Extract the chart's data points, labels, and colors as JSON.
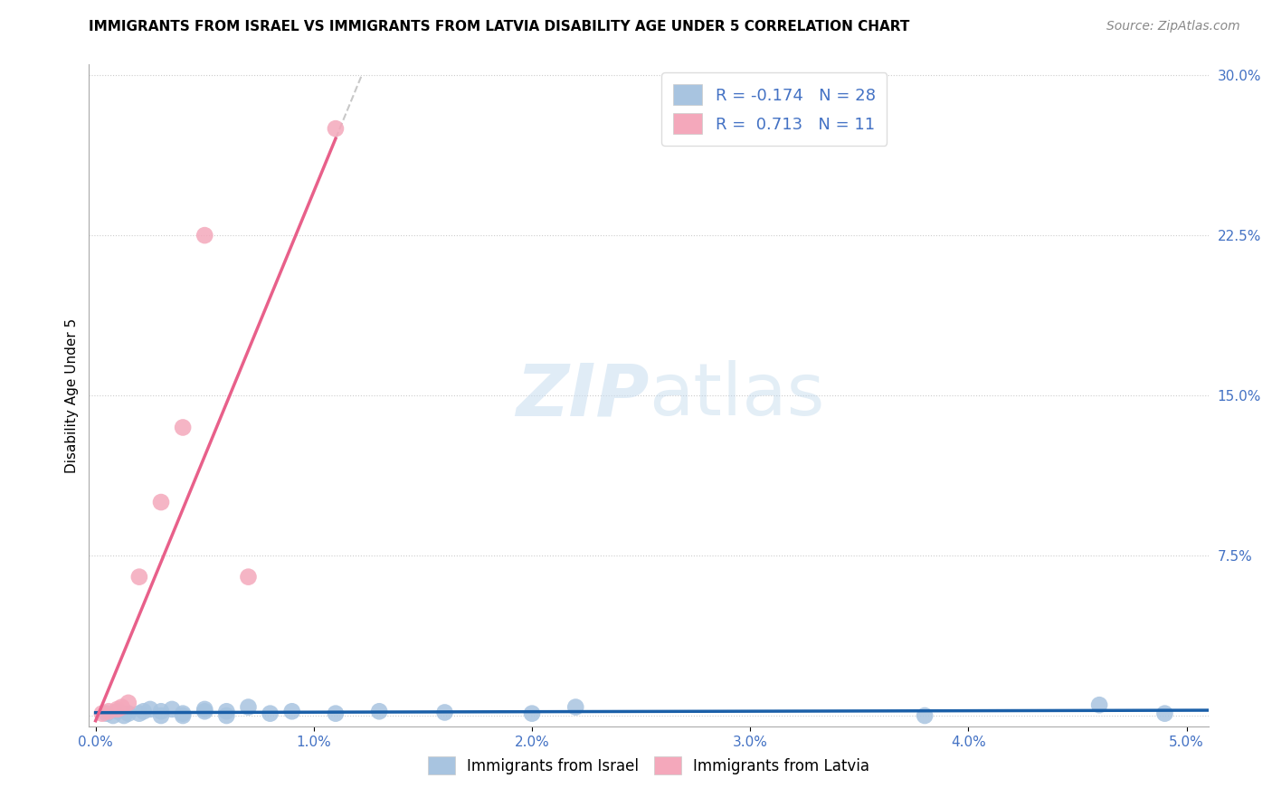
{
  "title": "IMMIGRANTS FROM ISRAEL VS IMMIGRANTS FROM LATVIA DISABILITY AGE UNDER 5 CORRELATION CHART",
  "source": "Source: ZipAtlas.com",
  "ylabel": "Disability Age Under 5",
  "xlim": [
    -0.0003,
    0.051
  ],
  "ylim": [
    -0.005,
    0.305
  ],
  "xticks": [
    0.0,
    0.01,
    0.02,
    0.03,
    0.04,
    0.05
  ],
  "yticks": [
    0.0,
    0.075,
    0.15,
    0.225,
    0.3
  ],
  "xtick_labels": [
    "0.0%",
    "1.0%",
    "2.0%",
    "3.0%",
    "4.0%",
    "5.0%"
  ],
  "ytick_labels": [
    "",
    "7.5%",
    "15.0%",
    "22.5%",
    "30.0%"
  ],
  "israel_color": "#a8c4e0",
  "latvia_color": "#f4a8bb",
  "israel_trend_color": "#1a5fa8",
  "latvia_trend_color": "#e8608a",
  "r_israel": -0.174,
  "n_israel": 28,
  "r_latvia": 0.713,
  "n_latvia": 11,
  "israel_x": [
    0.0005,
    0.0008,
    0.001,
    0.0013,
    0.0015,
    0.002,
    0.0022,
    0.0025,
    0.003,
    0.003,
    0.0035,
    0.004,
    0.004,
    0.005,
    0.005,
    0.006,
    0.006,
    0.007,
    0.008,
    0.009,
    0.011,
    0.013,
    0.016,
    0.02,
    0.022,
    0.038,
    0.046,
    0.049
  ],
  "israel_y": [
    0.001,
    0.0,
    0.002,
    0.0,
    0.001,
    0.001,
    0.002,
    0.003,
    0.0,
    0.002,
    0.003,
    0.001,
    0.0,
    0.002,
    0.003,
    0.002,
    0.0,
    0.004,
    0.001,
    0.002,
    0.001,
    0.002,
    0.0015,
    0.001,
    0.004,
    0.0,
    0.005,
    0.001
  ],
  "latvia_x": [
    0.0003,
    0.0006,
    0.001,
    0.0012,
    0.0015,
    0.002,
    0.003,
    0.004,
    0.005,
    0.007,
    0.011
  ],
  "latvia_y": [
    0.001,
    0.002,
    0.003,
    0.004,
    0.006,
    0.065,
    0.1,
    0.135,
    0.225,
    0.065,
    0.275
  ],
  "trend_dashed_color": "#c8c8c8"
}
